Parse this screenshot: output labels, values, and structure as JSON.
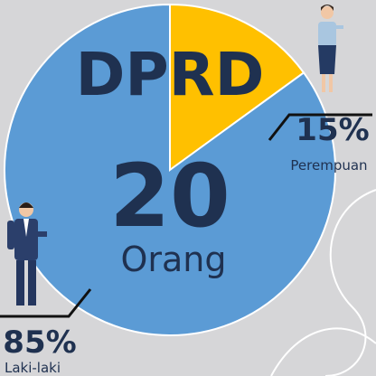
{
  "chart_data": {
    "type": "pie",
    "title": "DPRD",
    "total": 20,
    "total_unit": "Orang",
    "categories": [
      "Perempuan",
      "Laki-laki"
    ],
    "values": [
      15,
      85
    ],
    "value_labels": [
      "15%",
      "85%"
    ],
    "colors": [
      "#ffc000",
      "#5b9bd5"
    ]
  }
}
